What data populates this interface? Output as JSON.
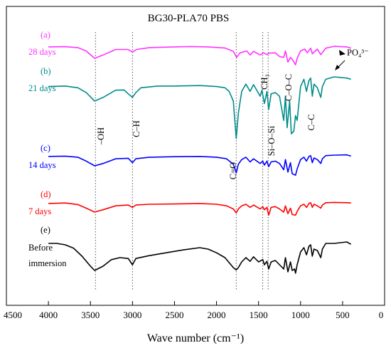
{
  "chart_data": {
    "type": "line",
    "title": "BG30-PLA70 PBS",
    "xlabel": "Wave number (cm⁻¹)",
    "ylabel": "",
    "xlim": [
      4500,
      0
    ],
    "xticks": [
      "4500",
      "4000",
      "3500",
      "3000",
      "2500",
      "2000",
      "1500",
      "1000",
      "500",
      "0"
    ],
    "yaxis_ticks_shown": false,
    "grid": false,
    "legend": "none",
    "series": [
      {
        "name": "28 days",
        "label_letter": "(a)",
        "label_time": "28 days",
        "color": "#ff33ff",
        "points": [
          [
            4000,
            0.62
          ],
          [
            3800,
            0.63
          ],
          [
            3650,
            0.58
          ],
          [
            3550,
            0.4
          ],
          [
            3450,
            0.0
          ],
          [
            3350,
            0.18
          ],
          [
            3200,
            0.48
          ],
          [
            3050,
            0.48
          ],
          [
            3000,
            0.34
          ],
          [
            2950,
            0.48
          ],
          [
            2800,
            0.58
          ],
          [
            2500,
            0.62
          ],
          [
            2300,
            0.64
          ],
          [
            2100,
            0.62
          ],
          [
            1900,
            0.56
          ],
          [
            1800,
            0.38
          ],
          [
            1760,
            0.05
          ],
          [
            1720,
            0.3
          ],
          [
            1640,
            0.4
          ],
          [
            1600,
            0.18
          ],
          [
            1560,
            0.38
          ],
          [
            1480,
            0.18
          ],
          [
            1440,
            0.3
          ],
          [
            1400,
            0.2
          ],
          [
            1380,
            0.28
          ],
          [
            1300,
            0.3
          ],
          [
            1250,
            0.1
          ],
          [
            1200,
            0.05
          ],
          [
            1180,
            0.4
          ],
          [
            1150,
            -0.2
          ],
          [
            1120,
            0.05
          ],
          [
            1100,
            -0.05
          ],
          [
            1060,
            -0.35
          ],
          [
            1040,
            0.0
          ],
          [
            1000,
            0.4
          ],
          [
            950,
            0.5
          ],
          [
            920,
            0.3
          ],
          [
            880,
            0.55
          ],
          [
            860,
            0.25
          ],
          [
            800,
            0.5
          ],
          [
            760,
            0.2
          ],
          [
            700,
            0.55
          ],
          [
            600,
            0.65
          ],
          [
            450,
            0.62
          ],
          [
            400,
            0.55
          ]
        ]
      },
      {
        "name": "21 days",
        "label_letter": "(b)",
        "label_time": "21 days",
        "color": "#008b8b",
        "points": [
          [
            4000,
            0.6
          ],
          [
            3800,
            0.62
          ],
          [
            3650,
            0.55
          ],
          [
            3550,
            0.35
          ],
          [
            3450,
            0.0
          ],
          [
            3350,
            0.15
          ],
          [
            3200,
            0.45
          ],
          [
            3100,
            0.46
          ],
          [
            3050,
            0.3
          ],
          [
            3000,
            0.15
          ],
          [
            2960,
            0.35
          ],
          [
            2900,
            0.55
          ],
          [
            2700,
            0.62
          ],
          [
            2500,
            0.62
          ],
          [
            2200,
            0.64
          ],
          [
            2000,
            0.6
          ],
          [
            1900,
            0.55
          ],
          [
            1850,
            0.4
          ],
          [
            1800,
            0.0
          ],
          [
            1765,
            -1.55
          ],
          [
            1740,
            -0.5
          ],
          [
            1700,
            0.4
          ],
          [
            1650,
            0.7
          ],
          [
            1600,
            0.4
          ],
          [
            1560,
            0.68
          ],
          [
            1480,
            0.2
          ],
          [
            1460,
            0.45
          ],
          [
            1430,
            -0.1
          ],
          [
            1400,
            0.4
          ],
          [
            1380,
            -0.35
          ],
          [
            1350,
            0.3
          ],
          [
            1300,
            0.35
          ],
          [
            1250,
            0.2
          ],
          [
            1200,
            -0.8
          ],
          [
            1180,
            0.2
          ],
          [
            1160,
            -1.1
          ],
          [
            1130,
            0.0
          ],
          [
            1110,
            -1.35
          ],
          [
            1080,
            -1.25
          ],
          [
            1060,
            -0.6
          ],
          [
            1040,
            -0.8
          ],
          [
            1000,
            0.6
          ],
          [
            960,
            0.9
          ],
          [
            930,
            0.4
          ],
          [
            900,
            0.85
          ],
          [
            880,
            0.95
          ],
          [
            860,
            0.2
          ],
          [
            840,
            0.7
          ],
          [
            800,
            0.55
          ],
          [
            760,
            0.15
          ],
          [
            740,
            0.6
          ],
          [
            700,
            0.9
          ],
          [
            600,
            1.0
          ],
          [
            450,
            0.95
          ],
          [
            400,
            0.9
          ]
        ]
      },
      {
        "name": "14 days",
        "label_letter": "(c)",
        "label_time": "14 days",
        "color": "#0000ff",
        "points": [
          [
            4000,
            0.6
          ],
          [
            3800,
            0.62
          ],
          [
            3650,
            0.55
          ],
          [
            3550,
            0.3
          ],
          [
            3450,
            0.0
          ],
          [
            3350,
            0.15
          ],
          [
            3200,
            0.45
          ],
          [
            3050,
            0.48
          ],
          [
            3000,
            0.2
          ],
          [
            2960,
            0.45
          ],
          [
            2800,
            0.55
          ],
          [
            2500,
            0.58
          ],
          [
            2200,
            0.6
          ],
          [
            2000,
            0.55
          ],
          [
            1880,
            0.45
          ],
          [
            1800,
            0.1
          ],
          [
            1765,
            -0.45
          ],
          [
            1740,
            0.1
          ],
          [
            1700,
            0.4
          ],
          [
            1650,
            0.55
          ],
          [
            1600,
            0.25
          ],
          [
            1560,
            0.45
          ],
          [
            1480,
            0.15
          ],
          [
            1450,
            0.3
          ],
          [
            1430,
            0.05
          ],
          [
            1400,
            0.3
          ],
          [
            1380,
            -0.05
          ],
          [
            1350,
            0.25
          ],
          [
            1300,
            0.3
          ],
          [
            1250,
            0.15
          ],
          [
            1200,
            -0.25
          ],
          [
            1180,
            0.4
          ],
          [
            1150,
            -0.4
          ],
          [
            1120,
            0.2
          ],
          [
            1100,
            -0.5
          ],
          [
            1060,
            -0.6
          ],
          [
            1040,
            -0.2
          ],
          [
            1000,
            0.4
          ],
          [
            960,
            0.55
          ],
          [
            930,
            0.3
          ],
          [
            900,
            0.6
          ],
          [
            880,
            0.65
          ],
          [
            860,
            0.2
          ],
          [
            840,
            0.5
          ],
          [
            800,
            0.4
          ],
          [
            760,
            0.15
          ],
          [
            740,
            0.45
          ],
          [
            700,
            0.65
          ],
          [
            600,
            0.68
          ],
          [
            450,
            0.7
          ],
          [
            400,
            0.62
          ]
        ]
      },
      {
        "name": "7 days",
        "label_letter": "(d)",
        "label_time": "7 days",
        "color": "#ff0000",
        "points": [
          [
            4000,
            0.55
          ],
          [
            3800,
            0.58
          ],
          [
            3650,
            0.48
          ],
          [
            3550,
            0.25
          ],
          [
            3450,
            0.0
          ],
          [
            3350,
            0.15
          ],
          [
            3200,
            0.4
          ],
          [
            3050,
            0.45
          ],
          [
            3000,
            0.3
          ],
          [
            2960,
            0.45
          ],
          [
            2800,
            0.5
          ],
          [
            2500,
            0.52
          ],
          [
            2200,
            0.55
          ],
          [
            2000,
            0.5
          ],
          [
            1880,
            0.4
          ],
          [
            1800,
            0.2
          ],
          [
            1765,
            -0.05
          ],
          [
            1740,
            0.2
          ],
          [
            1700,
            0.4
          ],
          [
            1650,
            0.5
          ],
          [
            1600,
            0.3
          ],
          [
            1560,
            0.45
          ],
          [
            1480,
            0.2
          ],
          [
            1450,
            0.35
          ],
          [
            1430,
            0.15
          ],
          [
            1400,
            0.3
          ],
          [
            1380,
            -0.2
          ],
          [
            1350,
            0.3
          ],
          [
            1300,
            0.35
          ],
          [
            1250,
            0.2
          ],
          [
            1200,
            0.0
          ],
          [
            1180,
            0.4
          ],
          [
            1150,
            -0.1
          ],
          [
            1120,
            0.25
          ],
          [
            1100,
            -0.15
          ],
          [
            1060,
            -0.2
          ],
          [
            1040,
            0.05
          ],
          [
            1000,
            0.4
          ],
          [
            960,
            0.5
          ],
          [
            930,
            0.3
          ],
          [
            900,
            0.55
          ],
          [
            880,
            0.6
          ],
          [
            860,
            0.3
          ],
          [
            840,
            0.5
          ],
          [
            800,
            0.4
          ],
          [
            760,
            0.25
          ],
          [
            740,
            0.45
          ],
          [
            700,
            0.6
          ],
          [
            600,
            0.62
          ],
          [
            450,
            0.6
          ],
          [
            400,
            0.58
          ]
        ]
      },
      {
        "name": "Before immersion",
        "label_letter": "(e)",
        "label_time": "Before immersion",
        "color": "#000000",
        "points": [
          [
            4000,
            0.95
          ],
          [
            3900,
            0.95
          ],
          [
            3800,
            0.9
          ],
          [
            3700,
            0.78
          ],
          [
            3600,
            0.5
          ],
          [
            3500,
            0.15
          ],
          [
            3450,
            0.0
          ],
          [
            3350,
            0.15
          ],
          [
            3250,
            0.38
          ],
          [
            3150,
            0.45
          ],
          [
            3050,
            0.42
          ],
          [
            3000,
            0.2
          ],
          [
            2960,
            0.42
          ],
          [
            2800,
            0.52
          ],
          [
            2600,
            0.62
          ],
          [
            2400,
            0.72
          ],
          [
            2200,
            0.8
          ],
          [
            2100,
            0.75
          ],
          [
            2000,
            0.62
          ],
          [
            1900,
            0.45
          ],
          [
            1800,
            0.1
          ],
          [
            1765,
            0.02
          ],
          [
            1740,
            0.1
          ],
          [
            1700,
            0.3
          ],
          [
            1650,
            0.45
          ],
          [
            1600,
            0.32
          ],
          [
            1560,
            0.48
          ],
          [
            1500,
            0.3
          ],
          [
            1450,
            0.38
          ],
          [
            1430,
            0.2
          ],
          [
            1400,
            0.32
          ],
          [
            1380,
            0.05
          ],
          [
            1350,
            0.3
          ],
          [
            1300,
            0.35
          ],
          [
            1250,
            0.2
          ],
          [
            1200,
            0.05
          ],
          [
            1180,
            0.45
          ],
          [
            1150,
            -0.05
          ],
          [
            1120,
            0.3
          ],
          [
            1100,
            0.0
          ],
          [
            1070,
            0.05
          ],
          [
            1060,
            -0.1
          ],
          [
            1040,
            0.2
          ],
          [
            1000,
            0.65
          ],
          [
            960,
            0.8
          ],
          [
            930,
            0.55
          ],
          [
            900,
            0.85
          ],
          [
            880,
            0.9
          ],
          [
            860,
            0.5
          ],
          [
            840,
            0.75
          ],
          [
            800,
            0.7
          ],
          [
            760,
            0.45
          ],
          [
            740,
            0.75
          ],
          [
            700,
            0.95
          ],
          [
            600,
            0.95
          ],
          [
            450,
            1.0
          ],
          [
            400,
            0.92
          ]
        ]
      }
    ],
    "reference_lines": [
      {
        "x": 3440,
        "label": "–OH"
      },
      {
        "x": 3000,
        "label": "C–H"
      },
      {
        "x": 1765,
        "label": "C=O"
      },
      {
        "x": 1450,
        "label": "CH₃"
      },
      {
        "x": 1385,
        "label": "Si–O–Si"
      }
    ],
    "annotations": [
      {
        "text": "C–O–C"
      },
      {
        "text": "C–C"
      },
      {
        "text": "PO₄³⁻"
      }
    ]
  }
}
